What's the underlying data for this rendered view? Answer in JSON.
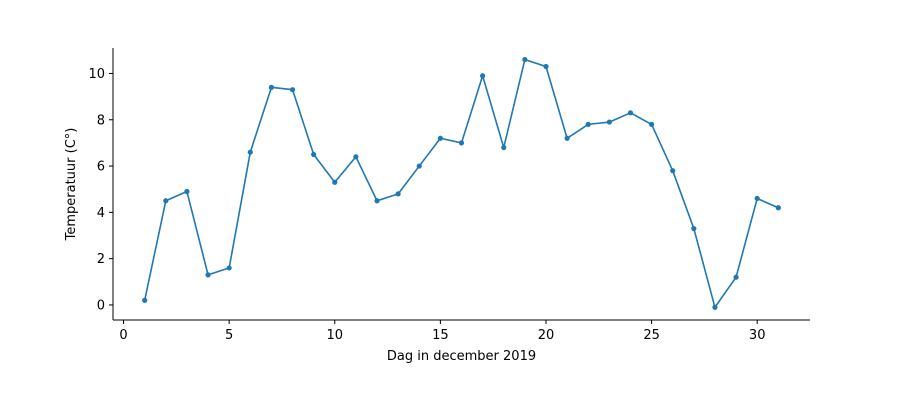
{
  "chart_data": {
    "type": "line",
    "title": "",
    "xlabel": "Dag in december 2019",
    "ylabel": "Temperatuur (C°)",
    "xlim": [
      -0.5,
      32.5
    ],
    "ylim": [
      -0.65,
      11.1
    ],
    "xticks": [
      0,
      5,
      10,
      15,
      20,
      25,
      30
    ],
    "yticks": [
      0,
      2,
      4,
      6,
      8,
      10
    ],
    "grid": false,
    "series": [
      {
        "color": "#1f77b4",
        "x": [
          1,
          2,
          3,
          4,
          5,
          6,
          7,
          8,
          9,
          10,
          11,
          12,
          13,
          14,
          15,
          16,
          17,
          18,
          19,
          20,
          21,
          22,
          23,
          24,
          25,
          26,
          27,
          28,
          29,
          30,
          31
        ],
        "y": [
          0.2,
          4.5,
          4.9,
          1.3,
          1.6,
          6.6,
          9.4,
          9.3,
          6.5,
          5.3,
          6.4,
          4.5,
          4.8,
          6.0,
          7.2,
          7.0,
          9.9,
          6.8,
          10.6,
          10.3,
          7.2,
          7.8,
          7.9,
          8.3,
          7.8,
          5.8,
          3.3,
          -0.1,
          1.2,
          4.6,
          4.2
        ]
      }
    ]
  }
}
